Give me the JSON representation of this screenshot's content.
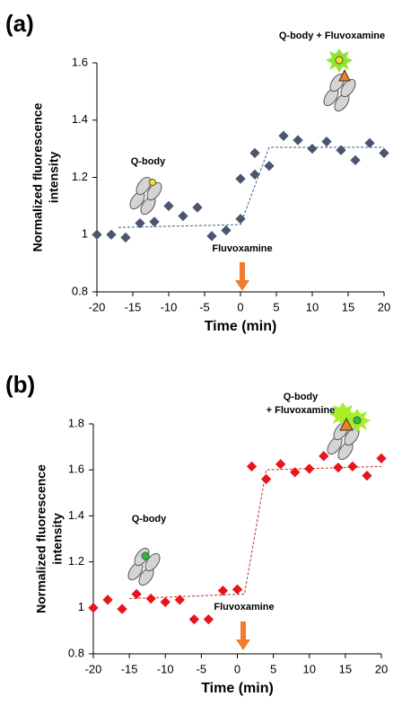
{
  "chart_data": [
    {
      "type": "scatter",
      "panel": "(a)",
      "ylabel": [
        "Normalized fluorescence",
        "intensity"
      ],
      "xlabel": "Time (min)",
      "x": [
        -20,
        -18,
        -16,
        -14,
        -12,
        -10,
        -8,
        -6,
        -4,
        -2,
        0,
        0,
        2,
        2,
        4,
        6,
        8,
        10,
        12,
        14,
        16,
        18,
        20
      ],
      "values": [
        1.0,
        1.0,
        0.99,
        1.04,
        1.045,
        1.1,
        1.065,
        1.095,
        0.995,
        1.015,
        1.055,
        1.195,
        1.285,
        1.21,
        1.24,
        1.345,
        1.33,
        1.3,
        1.325,
        1.295,
        1.26,
        1.32,
        1.285
      ],
      "color": "#4a5670",
      "trend_x": [
        -17,
        0,
        4,
        20
      ],
      "trend_values": [
        1.025,
        1.035,
        1.305,
        1.305
      ],
      "trend_color": "#3b5f8a",
      "xlim": [
        -20,
        20
      ],
      "xticks": [
        -20,
        -15,
        -10,
        -5,
        0,
        5,
        10,
        15,
        20
      ],
      "ylim": [
        0.8,
        1.6
      ],
      "yticks": [
        0.8,
        1,
        1.2,
        1.4,
        1.6
      ],
      "annotations": [
        {
          "lines": [
            "Q-body"
          ]
        },
        {
          "lines": [
            "Q-body + Fluvoxamine"
          ]
        },
        {
          "lines": [
            "Fluvoxamine"
          ]
        }
      ]
    },
    {
      "type": "scatter",
      "panel": "(b)",
      "ylabel": [
        "Normalized fluorescence",
        "intensity"
      ],
      "xlabel": "Time (min)",
      "x": [
        -20,
        -18,
        -16,
        -14,
        -12,
        -10,
        -8,
        -6,
        -4,
        -2,
        0,
        2,
        4,
        6,
        8,
        10,
        12,
        14,
        16,
        18,
        20
      ],
      "values": [
        1.0,
        1.035,
        0.995,
        1.06,
        1.04,
        1.025,
        1.035,
        0.95,
        0.95,
        1.075,
        1.08,
        1.615,
        1.56,
        1.625,
        1.59,
        1.605,
        1.66,
        1.61,
        1.615,
        1.575,
        1.65
      ],
      "color": "#e8141b",
      "trend_x": [
        -15,
        1,
        4,
        20
      ],
      "trend_values": [
        1.04,
        1.06,
        1.6,
        1.615
      ],
      "trend_color": "#c0302a",
      "xlim": [
        -20,
        20
      ],
      "xticks": [
        -20,
        -15,
        -10,
        -5,
        0,
        5,
        10,
        15,
        20
      ],
      "ylim": [
        0.8,
        1.8
      ],
      "yticks": [
        0.8,
        1,
        1.2,
        1.4,
        1.6,
        1.8
      ],
      "annotations": [
        {
          "lines": [
            "Q-body"
          ]
        },
        {
          "lines": [
            "Q-body",
            "+ Fluvoxamine"
          ]
        },
        {
          "lines": [
            "Fluvoxamine"
          ]
        }
      ]
    }
  ]
}
